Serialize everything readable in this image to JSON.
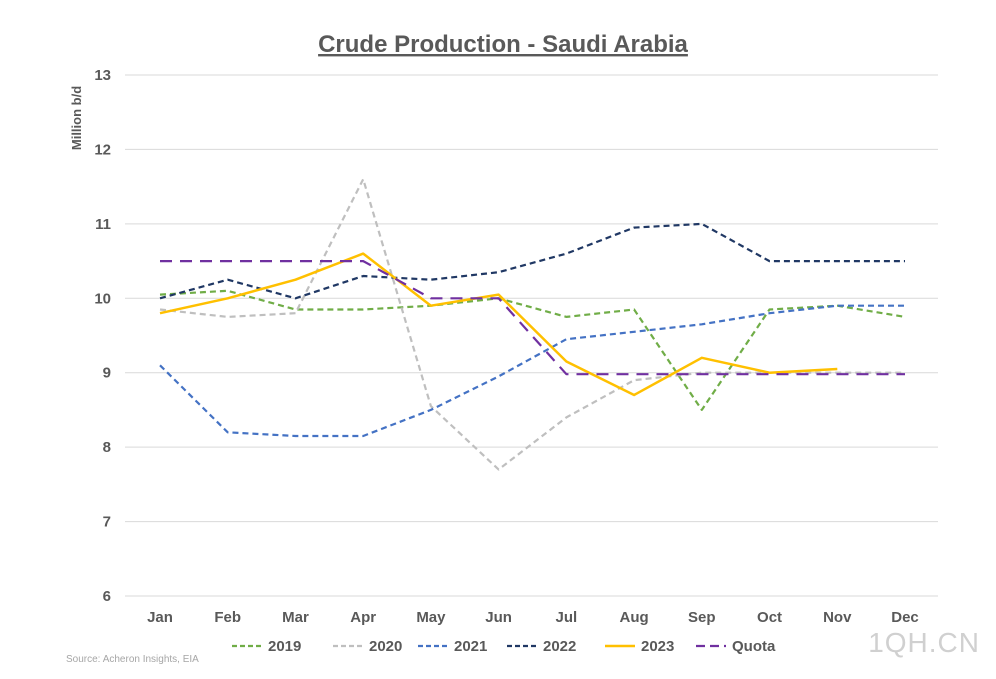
{
  "chart_data": {
    "type": "line",
    "title": "Crude Production - Saudi Arabia",
    "ylabel": "Million b/d",
    "xlabel": "",
    "ylim": [
      6,
      13
    ],
    "yticks": [
      6,
      7,
      8,
      9,
      10,
      11,
      12,
      13
    ],
    "categories": [
      "Jan",
      "Feb",
      "Mar",
      "Apr",
      "May",
      "Jun",
      "Jul",
      "Aug",
      "Sep",
      "Oct",
      "Nov",
      "Dec"
    ],
    "grid": true,
    "legend_position": "bottom",
    "series": [
      {
        "name": "2019",
        "color": "#70ad47",
        "dash": "dashed",
        "values": [
          10.05,
          10.1,
          9.85,
          9.85,
          9.9,
          10.0,
          9.75,
          9.85,
          8.5,
          9.85,
          9.9,
          9.75
        ]
      },
      {
        "name": "2020",
        "color": "#bfbfbf",
        "dash": "dashed",
        "values": [
          9.85,
          9.75,
          9.8,
          11.6,
          8.55,
          7.7,
          8.4,
          8.9,
          9.0,
          9.0,
          9.0,
          9.0
        ]
      },
      {
        "name": "2021",
        "color": "#4472c4",
        "dash": "dashed",
        "values": [
          9.1,
          8.2,
          8.15,
          8.15,
          8.5,
          8.95,
          9.45,
          9.55,
          9.65,
          9.8,
          9.9,
          9.9
        ]
      },
      {
        "name": "2022",
        "color": "#203864",
        "dash": "dashed",
        "values": [
          10.0,
          10.25,
          10.0,
          10.3,
          10.25,
          10.35,
          10.6,
          10.95,
          11.0,
          10.5,
          10.5,
          10.5
        ]
      },
      {
        "name": "2023",
        "color": "#ffc000",
        "dash": "solid",
        "values": [
          9.8,
          10.0,
          10.25,
          10.6,
          9.9,
          10.05,
          9.15,
          8.7,
          9.2,
          9.0,
          9.05,
          null
        ]
      },
      {
        "name": "Quota",
        "color": "#7030a0",
        "dash": "longdash",
        "values": [
          10.5,
          10.5,
          10.5,
          10.5,
          10.0,
          10.0,
          8.98,
          8.98,
          8.98,
          8.98,
          8.98,
          8.98
        ]
      }
    ]
  },
  "source": "Source: Acheron Insights, EIA",
  "watermark": "1QH.CN"
}
